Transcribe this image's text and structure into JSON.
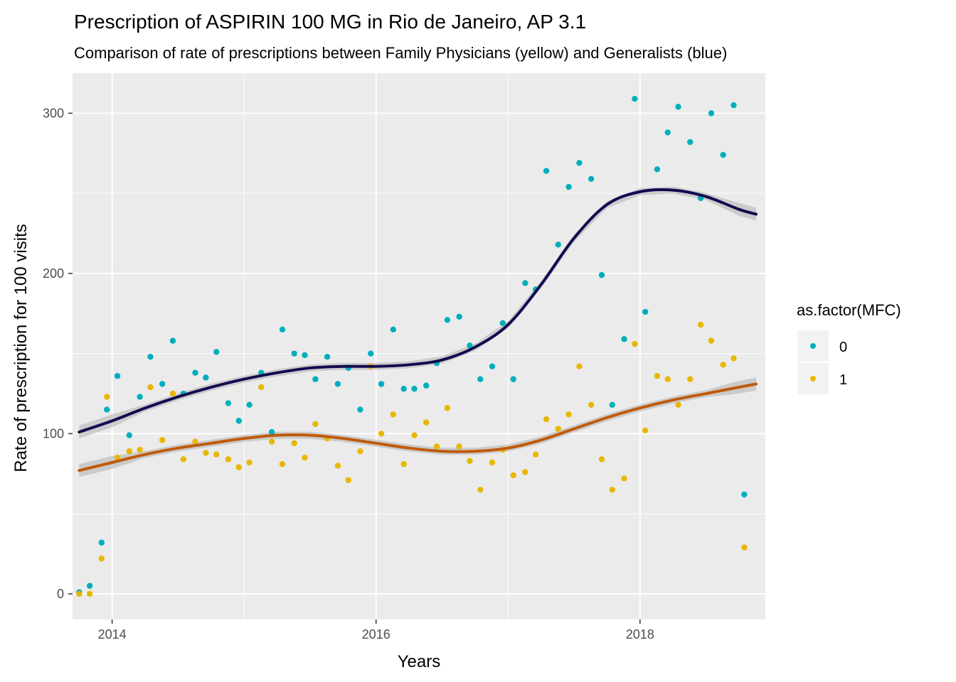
{
  "colors": {
    "panel_background": "#ebebeb",
    "grid": "#ffffff",
    "series_0_points": "#00afbb",
    "series_1_points": "#e7b800",
    "series_0_smooth": "#120a50",
    "series_1_smooth": "#c05a0a",
    "confidence_band": "#bdbdbd"
  },
  "chart_data": {
    "type": "scatter",
    "title": "Prescription of ASPIRIN 100 MG in Rio de Janeiro, AP 3.1",
    "subtitle": "Comparison of rate of prescriptions between Family Physicians (yellow) and Generalists (blue)",
    "xlabel": "Years",
    "ylabel": "Rate of prescription for 100 visits",
    "xlim": [
      2013.7,
      2018.95
    ],
    "ylim": [
      -16,
      325
    ],
    "x_ticks": [
      2014,
      2016,
      2018
    ],
    "x_tick_labels": [
      "2014",
      "2016",
      "2018"
    ],
    "y_ticks": [
      0,
      100,
      200,
      300
    ],
    "y_tick_labels": [
      "0",
      "100",
      "200",
      "300"
    ],
    "grid": true,
    "legend": {
      "title": "as.factor(MFC)",
      "position": "right",
      "labels": [
        "0",
        "1"
      ]
    },
    "series": [
      {
        "name": "0",
        "color": "#00afbb",
        "x": [
          2013.75,
          2013.83,
          2013.92,
          2013.96,
          2014.04,
          2014.13,
          2014.21,
          2014.29,
          2014.38,
          2014.46,
          2014.54,
          2014.63,
          2014.71,
          2014.79,
          2014.88,
          2014.96,
          2015.04,
          2015.13,
          2015.21,
          2015.29,
          2015.38,
          2015.46,
          2015.54,
          2015.63,
          2015.71,
          2015.79,
          2015.88,
          2015.96,
          2016.04,
          2016.13,
          2016.21,
          2016.29,
          2016.38,
          2016.46,
          2016.54,
          2016.63,
          2016.71,
          2016.79,
          2016.88,
          2016.96,
          2017.04,
          2017.13,
          2017.21,
          2017.29,
          2017.38,
          2017.46,
          2017.54,
          2017.63,
          2017.71,
          2017.79,
          2017.88,
          2017.96,
          2018.04,
          2018.13,
          2018.21,
          2018.29,
          2018.38,
          2018.46,
          2018.54,
          2018.63,
          2018.71,
          2018.79,
          2018.88
        ],
        "y": [
          1,
          5,
          32,
          115,
          136,
          99,
          123,
          148,
          131,
          158,
          125,
          138,
          135,
          151,
          119,
          108,
          118,
          138,
          101,
          165,
          150,
          149,
          134,
          148,
          131,
          141,
          115,
          150,
          131,
          165,
          128,
          128,
          130,
          144,
          171,
          173,
          155,
          134,
          142,
          169,
          134,
          194,
          190,
          264,
          218,
          254,
          269,
          259,
          199,
          118,
          159,
          309,
          176,
          265,
          288,
          304,
          282,
          247,
          300,
          274,
          305,
          62,
          null
        ]
      },
      {
        "name": "1",
        "color": "#e7b800",
        "x": [
          2013.75,
          2013.83,
          2013.92,
          2013.96,
          2014.04,
          2014.13,
          2014.21,
          2014.29,
          2014.38,
          2014.46,
          2014.54,
          2014.63,
          2014.71,
          2014.79,
          2014.88,
          2014.96,
          2015.04,
          2015.13,
          2015.21,
          2015.29,
          2015.38,
          2015.46,
          2015.54,
          2015.63,
          2015.71,
          2015.79,
          2015.88,
          2015.96,
          2016.04,
          2016.13,
          2016.21,
          2016.29,
          2016.38,
          2016.46,
          2016.54,
          2016.63,
          2016.71,
          2016.79,
          2016.88,
          2016.96,
          2017.04,
          2017.13,
          2017.21,
          2017.29,
          2017.38,
          2017.46,
          2017.54,
          2017.63,
          2017.71,
          2017.79,
          2017.88,
          2017.96,
          2018.04,
          2018.13,
          2018.21,
          2018.29,
          2018.38,
          2018.46,
          2018.54,
          2018.63,
          2018.71,
          2018.79,
          2018.88
        ],
        "y": [
          0,
          0,
          22,
          123,
          85,
          89,
          90,
          129,
          96,
          125,
          84,
          95,
          88,
          87,
          84,
          79,
          82,
          129,
          95,
          81,
          94,
          85,
          106,
          97,
          80,
          71,
          89,
          142,
          100,
          112,
          81,
          99,
          107,
          92,
          116,
          92,
          83,
          65,
          82,
          90,
          74,
          76,
          87,
          109,
          103,
          112,
          142,
          118,
          84,
          65,
          72,
          156,
          102,
          136,
          134,
          118,
          134,
          168,
          158,
          143,
          147,
          29,
          null
        ]
      }
    ],
    "smooth_fits": [
      {
        "series": "0",
        "color": "#120a50",
        "x": [
          2013.75,
          2014.0,
          2014.25,
          2014.5,
          2014.75,
          2015.0,
          2015.25,
          2015.5,
          2015.75,
          2016.0,
          2016.25,
          2016.5,
          2016.75,
          2017.0,
          2017.25,
          2017.5,
          2017.75,
          2018.0,
          2018.25,
          2018.5,
          2018.75,
          2018.88
        ],
        "y": [
          101,
          108,
          116,
          123,
          129,
          134,
          138,
          141,
          142,
          142,
          143,
          146,
          154,
          168,
          193,
          222,
          243,
          251,
          252,
          248,
          240,
          237
        ]
      },
      {
        "series": "1",
        "color": "#c05a0a",
        "x": [
          2013.75,
          2014.0,
          2014.25,
          2014.5,
          2014.75,
          2015.0,
          2015.25,
          2015.5,
          2015.75,
          2016.0,
          2016.25,
          2016.5,
          2016.75,
          2017.0,
          2017.25,
          2017.5,
          2017.75,
          2018.0,
          2018.25,
          2018.5,
          2018.75,
          2018.88
        ],
        "y": [
          77,
          82,
          87,
          91,
          94,
          97,
          99,
          99,
          97,
          94,
          91,
          89,
          89,
          91,
          96,
          103,
          110,
          116,
          121,
          125,
          129,
          131
        ]
      }
    ]
  }
}
